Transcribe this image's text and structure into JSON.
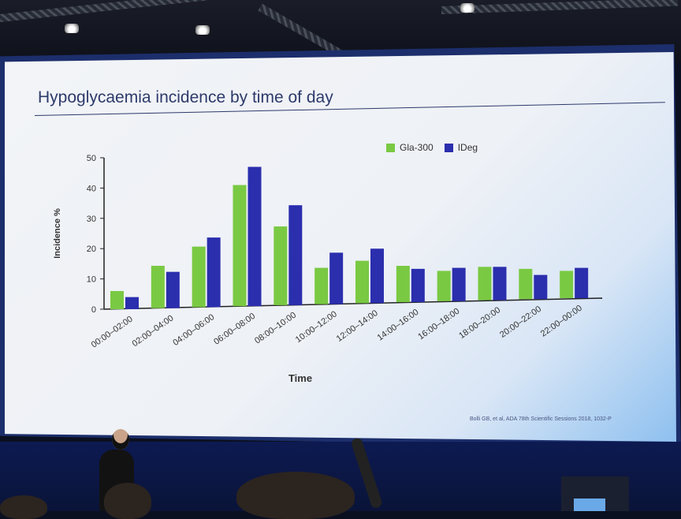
{
  "slide": {
    "title": "Hypoglycaemia incidence by time of day",
    "citation": "Bolli GB, et al, ADA 78th Scientific Sessions 2018, 1032-P"
  },
  "colors": {
    "gla300": "#7ac943",
    "ideg": "#2b2ead",
    "title": "#2d3a6b"
  },
  "chart_data": {
    "type": "bar",
    "title": "Hypoglycaemia incidence by time of day",
    "xlabel": "Time",
    "ylabel": "Incidence %",
    "ylim": [
      0,
      50
    ],
    "yticks": [
      0,
      10,
      20,
      30,
      40,
      50
    ],
    "legend_position": "top-right",
    "grid": false,
    "categories": [
      "00:00–02:00",
      "02:00–04:00",
      "04:00–06:00",
      "06:00–08:00",
      "08:00–10:00",
      "10:00–12:00",
      "12:00–14:00",
      "14:00–16:00",
      "16:00–18:00",
      "18:00–20:00",
      "20:00–22:00",
      "22:00–00:00"
    ],
    "series": [
      {
        "name": "Gla-300",
        "values": [
          6,
          14,
          20,
          40,
          26,
          12,
          14,
          12,
          10,
          11,
          10,
          9
        ]
      },
      {
        "name": "IDeg",
        "values": [
          4,
          12,
          23,
          46,
          33,
          17,
          18,
          11,
          11,
          11,
          8,
          10
        ]
      }
    ]
  }
}
